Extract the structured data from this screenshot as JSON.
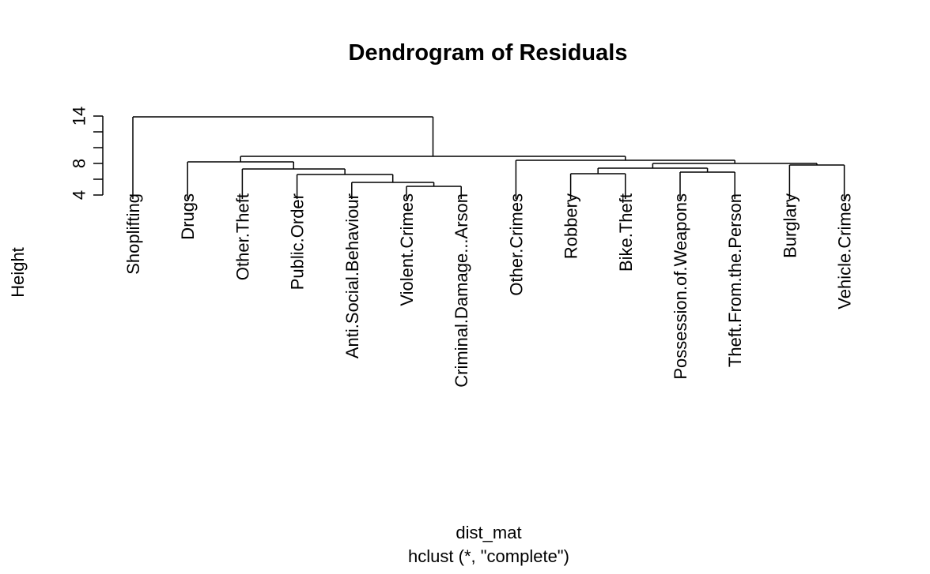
{
  "chart_data": {
    "type": "dendrogram",
    "title": "Dendrogram of Residuals",
    "ylabel": "Height",
    "xlabel": "dist_mat",
    "sublabel": "hclust (*, \"complete\")",
    "ylim": [
      3,
      14
    ],
    "yticks": [
      4,
      8,
      14
    ],
    "leaves": [
      "Shoplifting",
      "Drugs",
      "Other.Theft",
      "Public.Order",
      "Anti.Social.Behaviour",
      "Violent.Crimes",
      "Criminal.Damage...Arson",
      "Other.Crimes",
      "Robbery",
      "Bike.Theft",
      "Possession.of.Weapons",
      "Theft.From.the.Person",
      "Burglary",
      "Vehicle.Crimes"
    ],
    "merges": [
      {
        "left": "L5",
        "right": "L6",
        "height": 5.1
      },
      {
        "left": "L4",
        "right": "N0",
        "height": 5.6
      },
      {
        "left": "L3",
        "right": "N1",
        "height": 6.6
      },
      {
        "left": "L2",
        "right": "N2",
        "height": 7.3
      },
      {
        "left": "L1",
        "right": "N3",
        "height": 8.2
      },
      {
        "left": "L8",
        "right": "L9",
        "height": 6.7
      },
      {
        "left": "L10",
        "right": "L11",
        "height": 6.9
      },
      {
        "left": "N5",
        "right": "N6",
        "height": 7.4
      },
      {
        "left": "L12",
        "right": "L13",
        "height": 7.8
      },
      {
        "left": "N7",
        "right": "N8",
        "height": 8.0
      },
      {
        "left": "L7",
        "right": "N9",
        "height": 8.4
      },
      {
        "left": "N4",
        "right": "N10",
        "height": 8.9
      },
      {
        "left": "L0",
        "right": "N11",
        "height": 13.9
      }
    ]
  }
}
